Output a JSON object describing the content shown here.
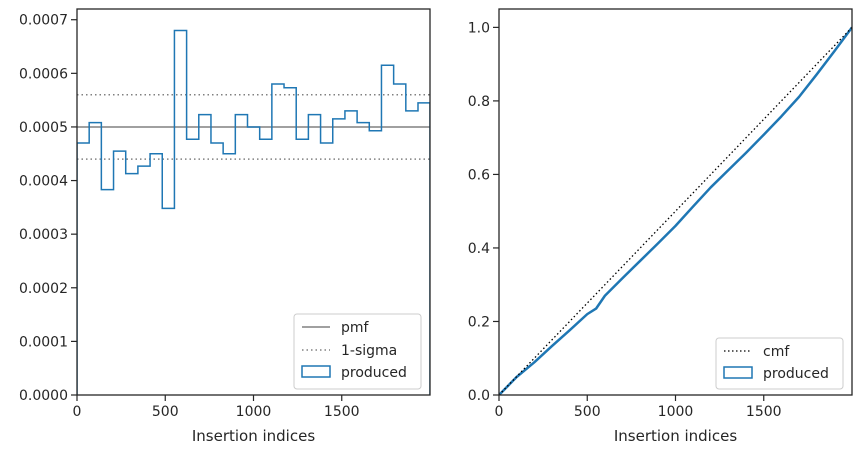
{
  "chart_data": [
    {
      "type": "step",
      "title": "",
      "xlabel": "Insertion indices",
      "ylabel": "",
      "xlim": [
        0,
        2000
      ],
      "ylim": [
        0,
        0.00072
      ],
      "xticks": [
        0,
        500,
        1000,
        1500
      ],
      "xtick_labels": [
        "0",
        "500",
        "1000",
        "1500"
      ],
      "yticks": [
        0,
        0.0001,
        0.0002,
        0.0003,
        0.0004,
        0.0005,
        0.0006,
        0.0007
      ],
      "ytick_labels": [
        "0.0000",
        "0.0001",
        "0.0002",
        "0.0003",
        "0.0004",
        "0.0005",
        "0.0006",
        "0.0007"
      ],
      "grid": false,
      "legend_position": "lower-right",
      "reference_lines": [
        {
          "name": "pmf",
          "y": 0.0005,
          "style": "solid",
          "color": "#808080"
        },
        {
          "name": "1-sigma",
          "y": 0.00044,
          "style": "dotted",
          "color": "#808080"
        },
        {
          "name": "1-sigma",
          "y": 0.00056,
          "style": "dotted",
          "color": "#808080"
        }
      ],
      "series": [
        {
          "name": "produced",
          "color": "#1f77b4",
          "bin_edges": [
            0,
            69,
            138,
            207,
            276,
            345,
            414,
            483,
            552,
            621,
            690,
            759,
            828,
            897,
            966,
            1035,
            1104,
            1173,
            1242,
            1311,
            1380,
            1449,
            1518,
            1587,
            1656,
            1725,
            1794,
            1863,
            1932,
            2000
          ],
          "values": [
            0.00047,
            0.000508,
            0.000383,
            0.000455,
            0.000413,
            0.000427,
            0.00045,
            0.000348,
            0.00068,
            0.000477,
            0.000523,
            0.00047,
            0.00045,
            0.000523,
            0.0005,
            0.000477,
            0.00058,
            0.000573,
            0.000477,
            0.000523,
            0.00047,
            0.000515,
            0.00053,
            0.000508,
            0.000493,
            0.000615,
            0.00058,
            0.00053,
            0.000545
          ]
        }
      ]
    },
    {
      "type": "line",
      "title": "",
      "xlabel": "Insertion indices",
      "ylabel": "",
      "xlim": [
        0,
        2000
      ],
      "ylim": [
        0,
        1.05
      ],
      "xticks": [
        0,
        500,
        1000,
        1500
      ],
      "xtick_labels": [
        "0",
        "500",
        "1000",
        "1500"
      ],
      "yticks": [
        0,
        0.2,
        0.4,
        0.6,
        0.8,
        1.0
      ],
      "ytick_labels": [
        "0.0",
        "0.2",
        "0.4",
        "0.6",
        "0.8",
        "1.0"
      ],
      "grid": false,
      "legend_position": "lower-right",
      "series": [
        {
          "name": "cmf",
          "style": "dotted",
          "color": "#000000",
          "x": [
            0,
            2000
          ],
          "y": [
            0,
            1.0
          ]
        },
        {
          "name": "produced",
          "style": "solid",
          "color": "#1f77b4",
          "x": [
            0,
            100,
            200,
            300,
            400,
            500,
            550,
            600,
            700,
            800,
            900,
            1000,
            1100,
            1200,
            1300,
            1400,
            1500,
            1600,
            1700,
            1800,
            1900,
            2000
          ],
          "y": [
            0,
            0.049,
            0.089,
            0.133,
            0.176,
            0.22,
            0.235,
            0.27,
            0.318,
            0.365,
            0.412,
            0.46,
            0.513,
            0.565,
            0.612,
            0.659,
            0.708,
            0.758,
            0.811,
            0.872,
            0.935,
            1.0
          ]
        }
      ]
    }
  ]
}
